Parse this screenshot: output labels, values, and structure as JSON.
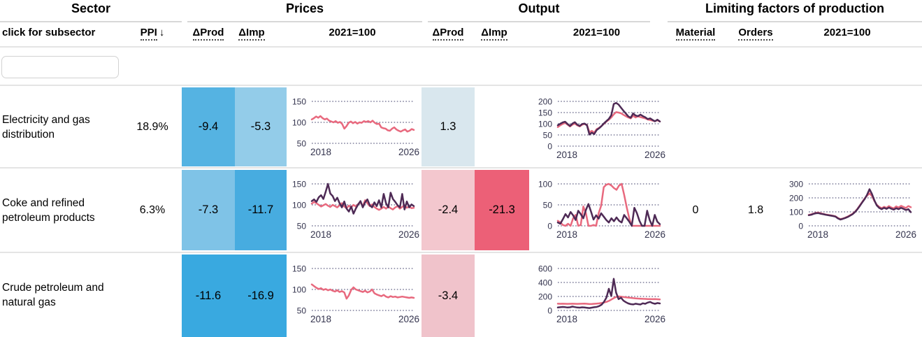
{
  "colors": {
    "line_pink": "#e8697e",
    "line_purple": "#4e2a55",
    "grid": "#3d3d68",
    "tick_label": "#34344e"
  },
  "header": {
    "sector": "Sector",
    "prices": "Prices",
    "output": "Output",
    "limiting": "Limiting factors of production"
  },
  "subheader": {
    "click_for_subsector": "click for subsector",
    "ppi": "PPI",
    "sort_arrow": "↓",
    "prices_dprod": "ΔProd",
    "prices_dimp": "ΔImp",
    "prices_index": "2021=100",
    "output_dprod": "ΔProd",
    "output_dimp": "ΔImp",
    "output_index": "2021=100",
    "material": "Material",
    "orders": "Orders",
    "limiting_index": "2021=100"
  },
  "search": {
    "value": "",
    "placeholder": ""
  },
  "rows": [
    {
      "sector": "Electricity and gas\ndistribution",
      "ppi": "18.9%",
      "material": "",
      "orders": "",
      "cells": {
        "prices_dprod": {
          "value": "-9.4",
          "bg": "#55b3e2"
        },
        "prices_dimp": {
          "value": "-5.3",
          "bg": "#93cce9"
        },
        "output_dprod": {
          "value": "1.3",
          "bg": "#d9e7ee"
        }
      },
      "charts": {
        "prices": {
          "x_labels": [
            "2018",
            "2026"
          ],
          "y_ticks": [
            150,
            100,
            50
          ],
          "series": [
            {
              "color": "line_pink",
              "values": [
                107,
                110,
                114,
                111,
                115,
                110,
                107,
                109,
                104,
                102,
                100,
                103,
                99,
                101,
                96,
                85,
                91,
                99,
                102,
                98,
                101,
                97,
                100,
                99,
                103,
                101,
                103,
                100,
                104,
                99,
                96,
                97,
                88,
                86,
                85,
                81,
                80,
                85,
                88,
                83,
                80,
                78,
                81,
                83,
                78,
                80,
                84,
                82
              ]
            }
          ]
        },
        "output": {
          "x_labels": [
            "2018",
            "2026"
          ],
          "y_ticks": [
            200,
            150,
            100,
            50,
            0
          ],
          "series": [
            {
              "color": "line_pink",
              "values": [
                85,
                93,
                99,
                104,
                96,
                88,
                96,
                101,
                93,
                88,
                96,
                99,
                95,
                62,
                68,
                60,
                76,
                82,
                90,
                100,
                110,
                118,
                128,
                142,
                152,
                150,
                147,
                140,
                134,
                128,
                124,
                136,
                128,
                133,
                130,
                127,
                124,
                119,
                117,
                114,
                112,
                116,
                110
              ]
            },
            {
              "color": "line_purple",
              "values": [
                93,
                100,
                106,
                109,
                99,
                90,
                101,
                107,
                96,
                90,
                99,
                101,
                93,
                52,
                60,
                54,
                72,
                80,
                90,
                102,
                112,
                122,
                138,
                188,
                193,
                186,
                172,
                158,
                146,
                133,
                127,
                146,
                137,
                134,
                141,
                134,
                129,
                121,
                124,
                117,
                111,
                118,
                110
              ]
            }
          ]
        }
      }
    },
    {
      "sector": "Coke and refined\npetroleum products",
      "ppi": "6.3%",
      "material": "0",
      "orders": "1.8",
      "cells": {
        "prices_dprod": {
          "value": "-7.3",
          "bg": "#7fc3e7"
        },
        "prices_dimp": {
          "value": "-11.7",
          "bg": "#47ace0"
        },
        "output_dprod": {
          "value": "-2.4",
          "bg": "#f3c7ce"
        },
        "output_dimp": {
          "value": "-21.3",
          "bg": "#ec6077"
        }
      },
      "charts": {
        "prices": {
          "x_labels": [
            "2018",
            "2026"
          ],
          "y_ticks": [
            150,
            100,
            50
          ],
          "series": [
            {
              "color": "line_pink",
              "values": [
                103,
                107,
                104,
                100,
                96,
                99,
                102,
                98,
                95,
                100,
                97,
                94,
                99,
                104,
                96,
                92,
                98,
                94,
                100,
                96,
                102,
                106,
                97,
                111,
                104,
                97,
                101,
                95,
                91,
                88,
                91,
                95,
                91,
                96,
                92,
                89,
                94,
                97,
                91,
                95,
                99,
                93,
                96,
                92,
                93
              ]
            },
            {
              "color": "line_purple",
              "values": [
                109,
                113,
                107,
                118,
                123,
                114,
                131,
                150,
                127,
                121,
                109,
                117,
                104,
                94,
                108,
                91,
                84,
                96,
                79,
                91,
                101,
                109,
                94,
                106,
                113,
                99,
                94,
                106,
                97,
                111,
                94,
                126,
                104,
                94,
                129,
                114,
                107,
                99,
                94,
                126,
                89,
                108,
                94,
                101,
                97
              ]
            }
          ]
        },
        "output": {
          "x_labels": [
            "2018",
            "2026"
          ],
          "y_ticks": [
            100,
            50,
            0
          ],
          "series": [
            {
              "color": "line_pink",
              "values": [
                12,
                8,
                2,
                0,
                5,
                0,
                18,
                26,
                0,
                2,
                46,
                30,
                0,
                0,
                2,
                0,
                30,
                48,
                92,
                98,
                100,
                96,
                90,
                86,
                96,
                100,
                74,
                44,
                18,
                0,
                0,
                0,
                0,
                0,
                0,
                0,
                0,
                0,
                0,
                0,
                0
              ]
            },
            {
              "color": "line_purple",
              "values": [
                8,
                5,
                16,
                28,
                20,
                33,
                25,
                14,
                36,
                28,
                18,
                38,
                52,
                34,
                15,
                25,
                17,
                30,
                22,
                14,
                8,
                18,
                11,
                20,
                12,
                8,
                26,
                18,
                10,
                0,
                43,
                30,
                12,
                0,
                0,
                36,
                14,
                0,
                26,
                10,
                4
              ]
            }
          ]
        },
        "limiting": {
          "x_labels": [
            "2018",
            "2026"
          ],
          "y_ticks": [
            300,
            200,
            100,
            0
          ],
          "series": [
            {
              "color": "line_pink",
              "values": [
                78,
                82,
                88,
                93,
                95,
                89,
                85,
                81,
                78,
                75,
                72,
                68,
                56,
                48,
                52,
                58,
                66,
                76,
                86,
                100,
                120,
                146,
                170,
                196,
                216,
                232,
                214,
                178,
                150,
                136,
                126,
                136,
                128,
                141,
                131,
                125,
                139,
                131,
                143,
                135,
                128,
                141,
                133
              ]
            },
            {
              "color": "line_purple",
              "values": [
                76,
                79,
                86,
                90,
                91,
                86,
                83,
                79,
                76,
                73,
                70,
                66,
                53,
                45,
                50,
                56,
                63,
                73,
                83,
                98,
                118,
                142,
                168,
                192,
                222,
                262,
                228,
                182,
                146,
                128,
                119,
                129,
                121,
                131,
                122,
                116,
                126,
                119,
                129,
                121,
                113,
                119,
                98
              ]
            }
          ]
        }
      }
    },
    {
      "sector": "Crude petroleum and\nnatural gas",
      "ppi": "",
      "material": "",
      "orders": "",
      "cells": {
        "prices_dprod": {
          "value": "-11.6",
          "bg": "#39a9e0"
        },
        "prices_dimp": {
          "value": "-16.9",
          "bg": "#39a9e0"
        },
        "output_dprod": {
          "value": "-3.4",
          "bg": "#f0c3cb"
        }
      },
      "charts": {
        "prices": {
          "x_labels": [
            "2018",
            "2026"
          ],
          "y_ticks": [
            150,
            100,
            50
          ],
          "series": [
            {
              "color": "line_pink",
              "values": [
                112,
                108,
                104,
                101,
                103,
                99,
                101,
                98,
                100,
                97,
                95,
                98,
                94,
                96,
                93,
                78,
                86,
                99,
                105,
                100,
                98,
                96,
                94,
                97,
                93,
                95,
                100,
                91,
                88,
                86,
                84,
                87,
                83,
                81,
                84,
                82,
                83,
                81,
                82,
                83,
                82,
                81,
                80,
                81,
                80
              ]
            }
          ]
        },
        "output": {
          "x_labels": [
            "2018",
            "2026"
          ],
          "y_ticks": [
            600,
            400,
            200,
            0
          ],
          "series": [
            {
              "color": "line_pink",
              "values": [
                96,
                95,
                96,
                95,
                94,
                95,
                96,
                95,
                94,
                95,
                96,
                97,
                95,
                91,
                92,
                95,
                98,
                101,
                106,
                113,
                122,
                136,
                156,
                176,
                192,
                200,
                197,
                192,
                188,
                184,
                180,
                176,
                173,
                170,
                168,
                166,
                165,
                163,
                162,
                161,
                162,
                160,
                158
              ]
            },
            {
              "color": "line_purple",
              "values": [
                42,
                46,
                50,
                47,
                42,
                45,
                55,
                48,
                42,
                40,
                45,
                42,
                38,
                34,
                40,
                46,
                50,
                62,
                82,
                122,
                182,
                310,
                205,
                452,
                255,
                162,
                182,
                140,
                118,
                100,
                90,
                86,
                96,
                90,
                85,
                102,
                95,
                112,
                122,
                104,
                95,
                106,
                100
              ]
            }
          ]
        }
      }
    }
  ]
}
